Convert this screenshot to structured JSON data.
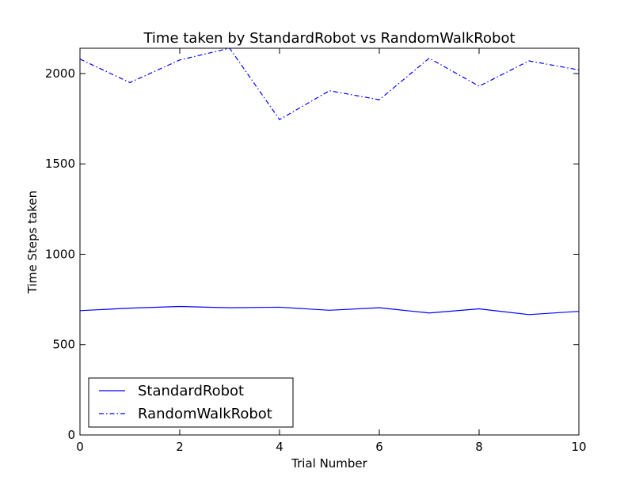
{
  "chart_data": {
    "type": "line",
    "title": "Time taken by StandardRobot vs RandomWalkRobot",
    "xlabel": "Trial Number",
    "ylabel": "Time Steps taken",
    "xlim": [
      0,
      10
    ],
    "ylim": [
      0,
      2140
    ],
    "xticks": [
      0,
      2,
      4,
      6,
      8,
      10
    ],
    "yticks": [
      0,
      500,
      1000,
      1500,
      2000
    ],
    "x": [
      0,
      1,
      2,
      3,
      4,
      5,
      6,
      7,
      8,
      9,
      10
    ],
    "series": [
      {
        "name": "StandardRobot",
        "style": "solid",
        "color": "#0000ff",
        "values": [
          688,
          702,
          711,
          704,
          707,
          690,
          704,
          675,
          698,
          666,
          684
        ]
      },
      {
        "name": "RandomWalkRobot",
        "style": "dashdot",
        "color": "#0000ff",
        "values": [
          2080,
          1950,
          2075,
          2140,
          1745,
          1905,
          1855,
          2085,
          1930,
          2070,
          2020
        ]
      }
    ],
    "grid": false,
    "legend_position": "lower-left"
  }
}
